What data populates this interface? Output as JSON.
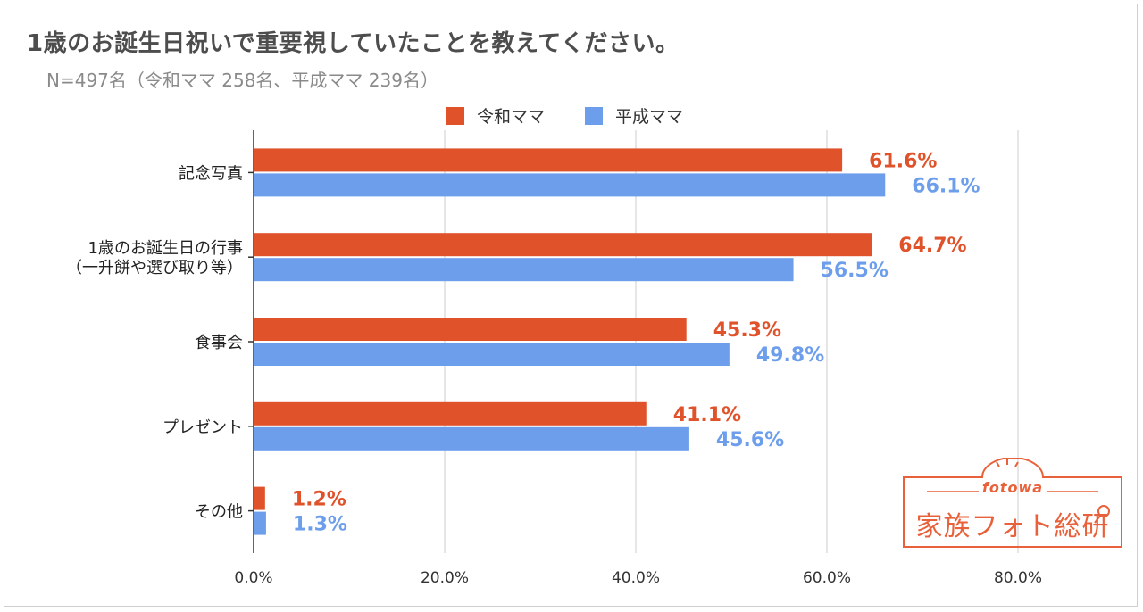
{
  "colors": {
    "reiwa": "#e0522a",
    "heisei": "#6d9eeb",
    "grid": "#cccccc",
    "axis": "#333333"
  },
  "chart_data": {
    "type": "bar",
    "orientation": "horizontal",
    "title": "1歳のお誕生日祝いで重要視していたことを教えてください。",
    "subtitle": "N=497名（令和ママ 258名、平成ママ 239名）",
    "categories": [
      [
        "記念写真"
      ],
      [
        "1歳のお誕生日の行事",
        "（一升餅や選び取り等）"
      ],
      [
        "食事会"
      ],
      [
        "プレゼント"
      ],
      [
        "その他"
      ]
    ],
    "series": [
      {
        "name": "令和ママ",
        "values": [
          61.6,
          64.7,
          45.3,
          41.1,
          1.2
        ],
        "labels": [
          "61.6%",
          "64.7%",
          "45.3%",
          "41.1%",
          "1.2%"
        ]
      },
      {
        "name": "平成ママ",
        "values": [
          66.1,
          56.5,
          49.8,
          45.6,
          1.3
        ],
        "labels": [
          "66.1%",
          "56.5%",
          "49.8%",
          "45.6%",
          "1.3%"
        ]
      }
    ],
    "xlim": [
      0,
      80
    ],
    "xticks": [
      0,
      20,
      40,
      60,
      80
    ],
    "xtick_labels": [
      "0.0%",
      "20.0%",
      "40.0%",
      "60.0%",
      "80.0%"
    ],
    "legend": "top-center",
    "grid": true
  },
  "logo": {
    "small": "fotowa",
    "big": "家族フォト総研"
  }
}
